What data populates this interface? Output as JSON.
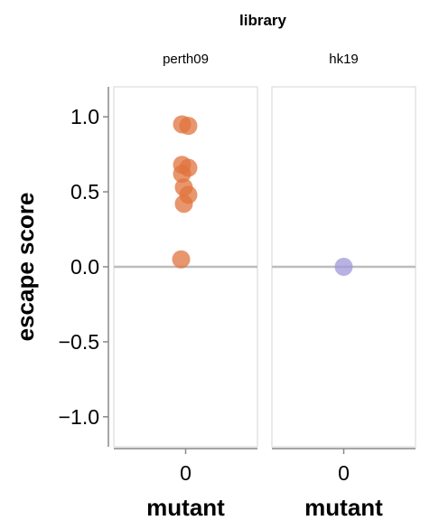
{
  "chart_data": {
    "type": "scatter",
    "facet_title": "library",
    "ylabel": "escape score",
    "ylim": [
      -1.2,
      1.2
    ],
    "yticks": [
      -1.0,
      -0.5,
      0.0,
      0.5,
      1.0
    ],
    "ytick_labels": [
      "−1.0",
      "−0.5",
      "0.0",
      "0.5",
      "1.0"
    ],
    "reference_line_y": 0.0,
    "grid": false,
    "panels": [
      {
        "title": "perth09",
        "xlabel": "mutant",
        "x_tick_label": "0",
        "color": "#e0733e",
        "points": [
          {
            "x": 0,
            "y": 0.95
          },
          {
            "x": 0,
            "y": 0.94
          },
          {
            "x": 0,
            "y": 0.68
          },
          {
            "x": 0,
            "y": 0.66
          },
          {
            "x": 0,
            "y": 0.62
          },
          {
            "x": 0,
            "y": 0.53
          },
          {
            "x": 0,
            "y": 0.48
          },
          {
            "x": 0,
            "y": 0.42
          },
          {
            "x": 0,
            "y": 0.05
          }
        ]
      },
      {
        "title": "hk19",
        "xlabel": "mutant",
        "x_tick_label": "0",
        "color": "#9f98d8",
        "points": [
          {
            "x": 0,
            "y": 0.0
          }
        ]
      }
    ]
  }
}
